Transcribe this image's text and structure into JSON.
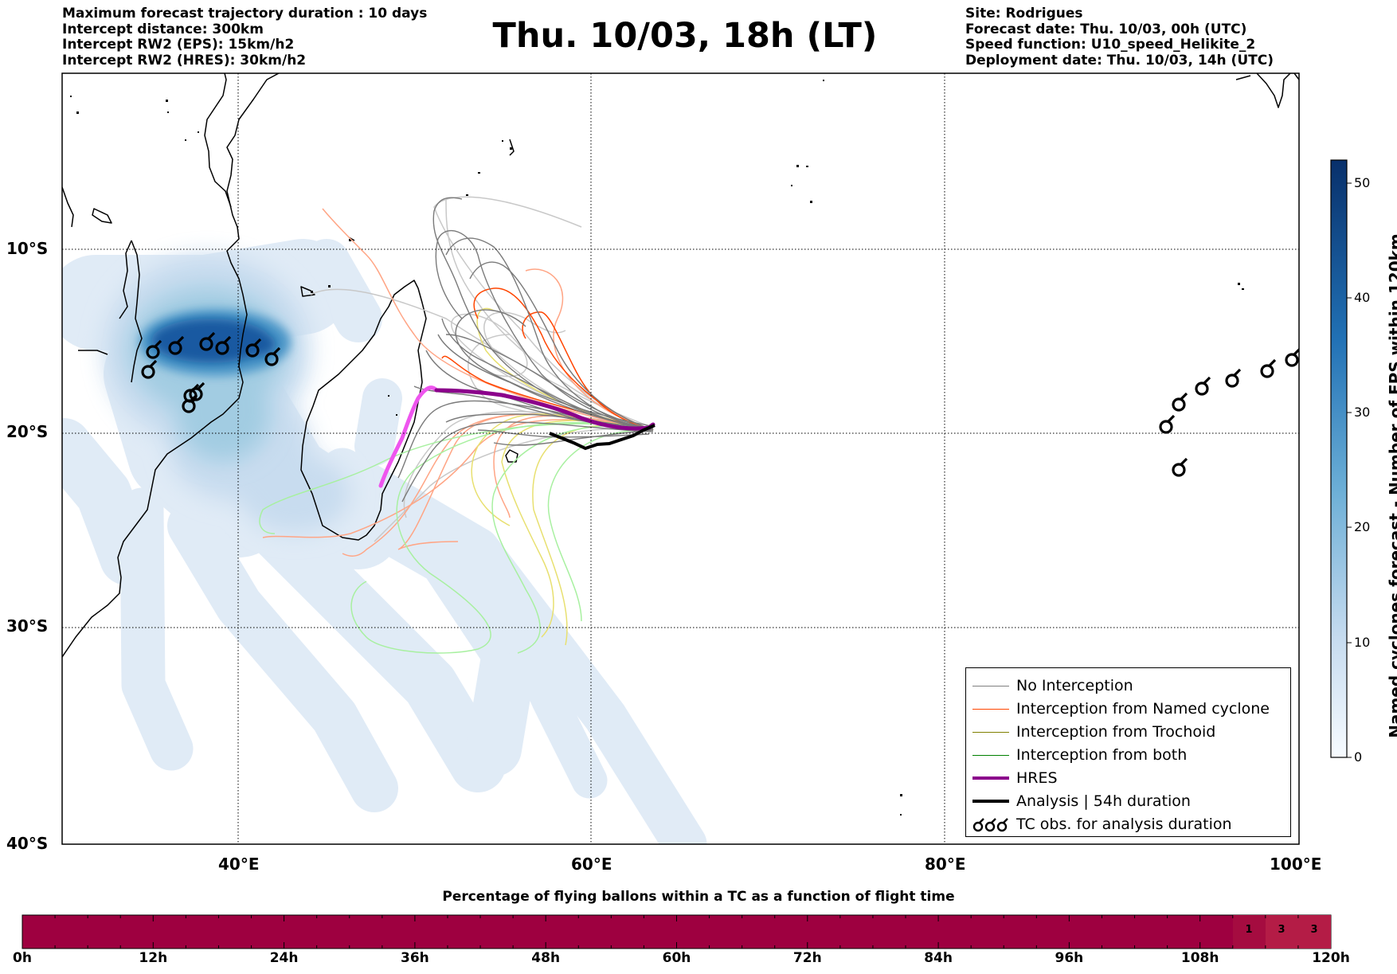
{
  "header": {
    "left_lines": [
      "Maximum forecast trajectory duration : 10 days",
      "Intercept distance: 300km",
      "Intercept RW2 (EPS):  15km/h2",
      "Intercept RW2 (HRES): 30km/h2"
    ],
    "title": "Thu. 10/03, 18h (LT)",
    "right_lines": [
      "Site: Rodrigues",
      "Forecast date: Thu. 10/03, 00h (UTC)",
      "Speed function: U10_speed_Helikite_2",
      "Deployment date: Thu. 10/03, 14h (UTC)"
    ]
  },
  "map": {
    "lon_range": [
      30,
      100
    ],
    "lat_range": [
      -40,
      0
    ],
    "lat_labels": [
      "10°S",
      "20°S",
      "30°S",
      "40°S"
    ],
    "lon_labels": [
      "40°E",
      "60°E",
      "80°E",
      "100°E"
    ],
    "grid": "dotted"
  },
  "colorbar": {
    "title": "Named cyclones forecast - Number of EPS within 120km",
    "ticks": [
      "0",
      "10",
      "20",
      "30",
      "40",
      "50"
    ],
    "range": [
      0,
      52
    ]
  },
  "legend": {
    "items": [
      {
        "label": "No Interception",
        "color": "#808080",
        "style": "thin"
      },
      {
        "label": "Interception from Named cyclone",
        "color": "#ff4500",
        "style": "thin"
      },
      {
        "label": "Interception from Trochoid",
        "color": "#808000",
        "style": "thin"
      },
      {
        "label": "Interception from both",
        "color": "#008000",
        "style": "thin"
      },
      {
        "label": "HRES",
        "color": "#8b008b",
        "style": "thick"
      },
      {
        "label": "Analysis | 54h duration",
        "color": "#000000",
        "style": "thick"
      },
      {
        "label": "TC obs. for analysis duration",
        "icon": "cyclone-symbols-icon"
      }
    ]
  },
  "bottom_bar": {
    "title": "Percentage of flying ballons within a TC as a function of flight time",
    "tick_labels": [
      "0h",
      "12h",
      "24h",
      "36h",
      "48h",
      "60h",
      "72h",
      "84h",
      "96h",
      "108h",
      "120h"
    ],
    "cell_values": [
      "1",
      "3",
      "3"
    ],
    "colors": {
      "base": "#9e0040",
      "cell1": "#a50c40",
      "cell3": "#b41c46"
    }
  },
  "colors": {
    "hres": "#8b008b",
    "hres_early": "#ee55ee",
    "analysis": "#000000",
    "no_interception": "#7a7a7a",
    "no_interception_light": "#c8c8c8",
    "named": "#ff4500",
    "named_light": "#ffa585",
    "trochoid": "#e8e070",
    "both": "#a8f0a0"
  }
}
